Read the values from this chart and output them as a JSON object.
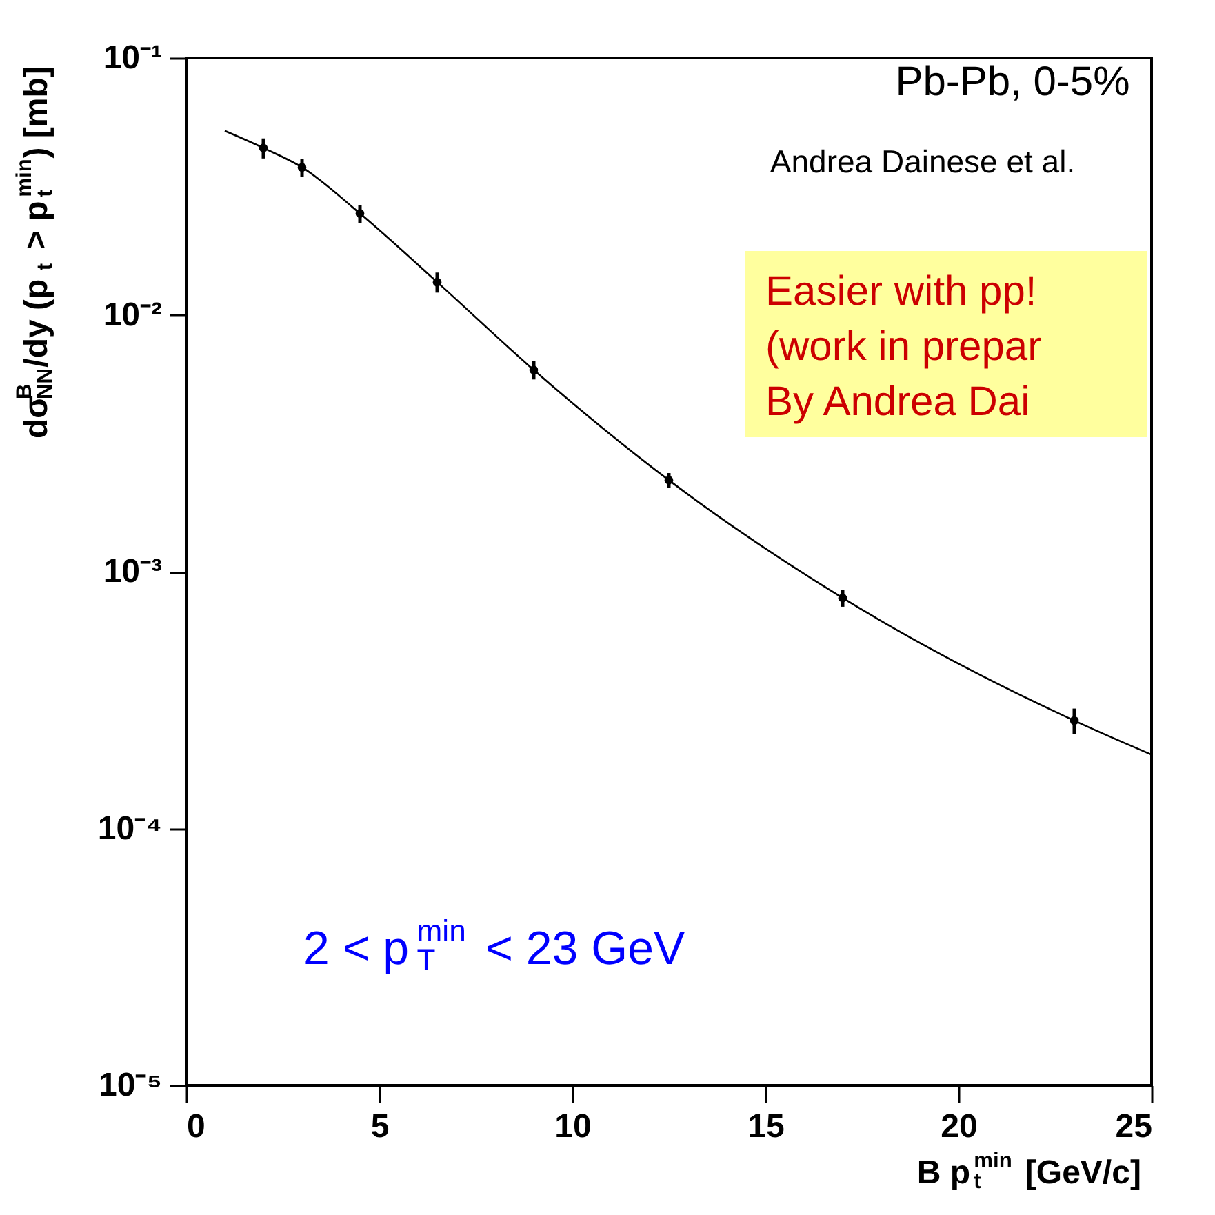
{
  "chart_data": {
    "type": "scatter",
    "xlabel": "B p$_{t}$$^{min}$ [GeV/c]",
    "ylabel": "dσ$_{NN}$$^{B}$/dy (p$_{t}$ > p$_{t}$$^{min}$) [mb]",
    "log": "y",
    "grid": false,
    "marker": "circle",
    "xlim": [
      0,
      25
    ],
    "xticks": [
      0,
      5,
      10,
      15,
      20,
      25
    ],
    "ylim": [
      1e-05,
      0.1
    ],
    "yticks": [
      {
        "value": 1e-05,
        "label": "10⁻⁵"
      },
      {
        "value": 0.0001,
        "label": "10⁻⁴"
      },
      {
        "value": 0.001,
        "label": "10⁻³"
      },
      {
        "value": 0.01,
        "label": "10⁻²"
      },
      {
        "value": 0.1,
        "label": "10⁻¹"
      }
    ],
    "series": [
      {
        "color": "#000000",
        "x": [
          2,
          3,
          4.5,
          6.5,
          9,
          12.5,
          17,
          23
        ],
        "values": [
          0.0446,
          0.0375,
          0.0248,
          0.0134,
          0.0061,
          0.00227,
          0.00079,
          0.000263
        ],
        "errors": [
          0.004,
          0.003,
          0.002,
          0.0012,
          0.0005,
          0.00015,
          6e-05,
          3e-05
        ]
      },
      {
        "type": "line",
        "color": "#000000",
        "line_style": "solid",
        "marker": "none",
        "x": [
          1,
          2,
          3,
          4.5,
          6.5,
          9,
          12.5,
          17,
          23,
          25
        ],
        "values": [
          0.052,
          0.0446,
          0.0375,
          0.0248,
          0.0134,
          0.0061,
          0.00227,
          0.00079,
          0.000263,
          0.000194
        ]
      }
    ],
    "annotations": [
      "Pb-Pb, 0-5%",
      "Andrea Dainese et al.",
      "Easier with pp!",
      "(work in prepar",
      "By Andrea Dai",
      "2 < p$_{T}$$^{min}$ < 23 GeV"
    ]
  }
}
